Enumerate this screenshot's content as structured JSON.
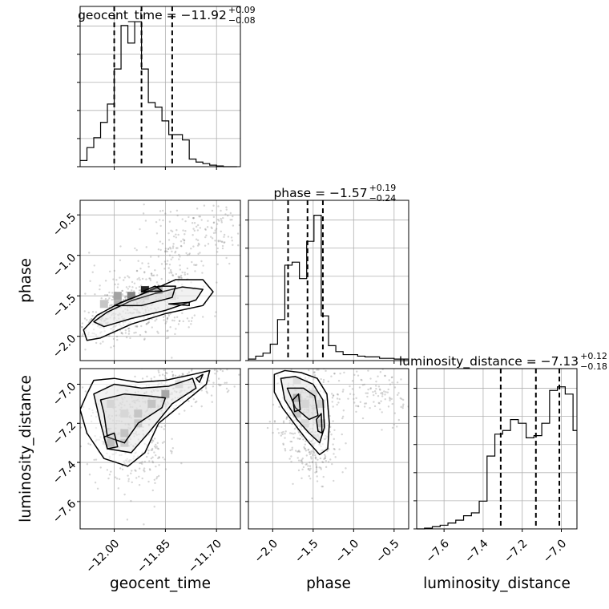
{
  "chart_data": {
    "type": "corner",
    "grid": true,
    "parameters": [
      {
        "name": "geocent_time",
        "range": [
          -12.1,
          -11.63
        ],
        "ticks": [
          -12.0,
          -11.85,
          -11.7
        ],
        "tick_labels": [
          "−12.00",
          "−11.85",
          "−11.70"
        ]
      },
      {
        "name": "phase",
        "range": [
          -2.3,
          -0.32
        ],
        "ticks": [
          -2.0,
          -1.5,
          -1.0,
          -0.5
        ],
        "tick_labels": [
          "−2.0",
          "−1.5",
          "−1.0",
          "−0.5"
        ]
      },
      {
        "name": "luminosity_distance",
        "range": [
          -7.74,
          -6.92
        ],
        "ticks": [
          -7.6,
          -7.4,
          -7.2,
          -7.0
        ],
        "tick_labels": [
          "−7.6",
          "−7.4",
          "−7.2",
          "−7.0"
        ]
      }
    ],
    "titles": [
      {
        "label": "geocent_time = −11.92",
        "plus": "+0.09",
        "minus": "−0.08"
      },
      {
        "label": "phase = −1.57",
        "plus": "+0.19",
        "minus": "−0.24"
      },
      {
        "label": "luminosity_distance = −7.13",
        "plus": "+0.12",
        "minus": "−0.18"
      }
    ],
    "quantiles": [
      [
        -12.0,
        -11.92,
        -11.83
      ],
      [
        -1.81,
        -1.57,
        -1.38
      ],
      [
        -7.31,
        -7.13,
        -7.01
      ]
    ],
    "histograms": [
      {
        "bins": [
          -12.1,
          -12.08,
          -12.06,
          -12.04,
          -12.02,
          -12.0,
          -11.98,
          -11.96,
          -11.94,
          -11.92,
          -11.9,
          -11.88,
          -11.86,
          -11.84,
          -11.82,
          -11.8,
          -11.78,
          -11.76,
          -11.74,
          -11.72,
          -11.7,
          -11.68,
          -11.66,
          -11.64
        ],
        "counts": [
          8,
          25,
          38,
          58,
          82,
          128,
          185,
          162,
          190,
          128,
          84,
          78,
          60,
          42,
          42,
          35,
          10,
          6,
          4,
          2,
          1,
          0,
          0
        ]
      },
      {
        "bins": [
          -2.3,
          -2.21,
          -2.12,
          -2.03,
          -1.94,
          -1.85,
          -1.76,
          -1.67,
          -1.58,
          -1.49,
          -1.4,
          -1.31,
          -1.22,
          -1.13,
          -1.04,
          -0.95,
          -0.86,
          -0.77,
          -0.68,
          -0.59,
          -0.5,
          -0.41,
          -0.32
        ],
        "counts": [
          2,
          6,
          10,
          22,
          55,
          128,
          132,
          110,
          160,
          195,
          60,
          20,
          12,
          8,
          8,
          6,
          5,
          5,
          3,
          3,
          2,
          2
        ]
      },
      {
        "bins": [
          -7.74,
          -7.7,
          -7.66,
          -7.62,
          -7.58,
          -7.54,
          -7.5,
          -7.46,
          -7.42,
          -7.38,
          -7.34,
          -7.3,
          -7.26,
          -7.22,
          -7.18,
          -7.14,
          -7.1,
          -7.06,
          -7.02,
          -6.98,
          -6.94,
          -6.92
        ],
        "counts": [
          0,
          1,
          3,
          5,
          8,
          12,
          18,
          22,
          38,
          100,
          130,
          135,
          150,
          145,
          125,
          128,
          145,
          190,
          195,
          185,
          135,
          135
        ]
      }
    ],
    "histogram_ymax": [
      210,
      215,
      220
    ],
    "pairs": [
      {
        "x": 0,
        "y": 1,
        "scatter": [
          {
            "cx": -11.95,
            "cy": -1.55,
            "sx": 0.06,
            "sy": 0.2,
            "n": 260
          },
          {
            "cx": -11.82,
            "cy": -1.05,
            "sx": 0.05,
            "sy": 0.3,
            "n": 150
          },
          {
            "cx": -11.7,
            "cy": -0.7,
            "sx": 0.04,
            "sy": 0.2,
            "n": 90
          },
          {
            "cx": -12.02,
            "cy": -1.85,
            "sx": 0.05,
            "sy": 0.12,
            "n": 120
          },
          {
            "cx": -11.86,
            "cy": -1.75,
            "sx": 0.06,
            "sy": 0.1,
            "n": 60
          }
        ],
        "density_cells": [
          {
            "x": -11.91,
            "y": -1.43,
            "v": 0.95
          },
          {
            "x": -11.87,
            "y": -1.43,
            "v": 0.8
          },
          {
            "x": -11.95,
            "y": -1.5,
            "v": 0.55
          },
          {
            "x": -11.99,
            "y": -1.5,
            "v": 0.4
          },
          {
            "x": -11.99,
            "y": -1.6,
            "v": 0.35
          },
          {
            "x": -11.91,
            "y": -1.5,
            "v": 0.3
          },
          {
            "x": -12.03,
            "y": -1.6,
            "v": 0.25
          },
          {
            "x": -11.83,
            "y": -1.5,
            "v": 0.2
          }
        ],
        "contours": [
          [
            [
              -12.09,
              -1.92
            ],
            [
              -12.05,
              -1.74
            ],
            [
              -11.98,
              -1.58
            ],
            [
              -11.9,
              -1.45
            ],
            [
              -11.82,
              -1.3
            ],
            [
              -11.74,
              -1.3
            ],
            [
              -11.71,
              -1.45
            ],
            [
              -11.74,
              -1.62
            ],
            [
              -11.85,
              -1.72
            ],
            [
              -11.95,
              -1.85
            ],
            [
              -12.04,
              -2.02
            ],
            [
              -12.08,
              -2.05
            ],
            [
              -12.09,
              -1.92
            ]
          ],
          [
            [
              -12.06,
              -1.82
            ],
            [
              -12.02,
              -1.7
            ],
            [
              -11.95,
              -1.56
            ],
            [
              -11.88,
              -1.47
            ],
            [
              -11.8,
              -1.39
            ],
            [
              -11.74,
              -1.42
            ],
            [
              -11.76,
              -1.55
            ],
            [
              -11.85,
              -1.68
            ],
            [
              -11.95,
              -1.78
            ],
            [
              -12.03,
              -1.88
            ],
            [
              -12.06,
              -1.82
            ]
          ],
          [
            [
              -12.0,
              -1.62
            ],
            [
              -11.93,
              -1.5
            ],
            [
              -11.87,
              -1.38
            ],
            [
              -11.82,
              -1.38
            ],
            [
              -11.83,
              -1.52
            ],
            [
              -11.92,
              -1.62
            ],
            [
              -12.0,
              -1.62
            ]
          ],
          [
            [
              -11.92,
              -1.45
            ],
            [
              -11.88,
              -1.38
            ],
            [
              -11.86,
              -1.44
            ],
            [
              -11.92,
              -1.45
            ]
          ],
          [
            [
              -11.84,
              -1.6
            ],
            [
              -11.78,
              -1.58
            ],
            [
              -11.78,
              -1.62
            ],
            [
              -11.84,
              -1.6
            ]
          ]
        ]
      },
      {
        "x": 0,
        "y": 2,
        "scatter": [
          {
            "cx": -11.98,
            "cy": -7.22,
            "sx": 0.06,
            "sy": 0.12,
            "n": 260
          },
          {
            "cx": -11.85,
            "cy": -7.05,
            "sx": 0.05,
            "sy": 0.06,
            "n": 160
          },
          {
            "cx": -11.93,
            "cy": -7.4,
            "sx": 0.05,
            "sy": 0.1,
            "n": 100
          },
          {
            "cx": -11.75,
            "cy": -6.98,
            "sx": 0.05,
            "sy": 0.05,
            "n": 80
          }
        ],
        "density_cells": [
          {
            "x": -11.85,
            "y": -7.05,
            "v": 0.95
          },
          {
            "x": -11.89,
            "y": -7.1,
            "v": 0.6
          },
          {
            "x": -11.93,
            "y": -7.15,
            "v": 0.55
          },
          {
            "x": -11.93,
            "y": -7.2,
            "v": 0.5
          },
          {
            "x": -11.97,
            "y": -7.25,
            "v": 0.6
          },
          {
            "x": -11.97,
            "y": -7.3,
            "v": 0.45
          },
          {
            "x": -12.01,
            "y": -7.1,
            "v": 0.3
          },
          {
            "x": -11.97,
            "y": -7.15,
            "v": 0.25
          },
          {
            "x": -12.01,
            "y": -7.3,
            "v": 0.7
          },
          {
            "x": -11.81,
            "y": -7.0,
            "v": 0.3
          }
        ],
        "contours": [
          [
            [
              -12.08,
              -7.05
            ],
            [
              -12.06,
              -6.98
            ],
            [
              -12.0,
              -6.97
            ],
            [
              -11.93,
              -6.99
            ],
            [
              -11.85,
              -6.98
            ],
            [
              -11.77,
              -6.95
            ],
            [
              -11.72,
              -6.93
            ],
            [
              -11.73,
              -7.0
            ],
            [
              -11.8,
              -7.1
            ],
            [
              -11.87,
              -7.2
            ],
            [
              -11.91,
              -7.35
            ],
            [
              -11.96,
              -7.42
            ],
            [
              -12.03,
              -7.38
            ],
            [
              -12.08,
              -7.25
            ],
            [
              -12.1,
              -7.13
            ],
            [
              -12.08,
              -7.05
            ]
          ],
          [
            [
              -12.06,
              -7.05
            ],
            [
              -12.0,
              -7.0
            ],
            [
              -11.92,
              -7.02
            ],
            [
              -11.84,
              -7.01
            ],
            [
              -11.77,
              -6.97
            ],
            [
              -11.76,
              -7.02
            ],
            [
              -11.83,
              -7.1
            ],
            [
              -11.9,
              -7.25
            ],
            [
              -11.95,
              -7.35
            ],
            [
              -12.02,
              -7.33
            ],
            [
              -12.04,
              -7.2
            ],
            [
              -12.06,
              -7.05
            ]
          ],
          [
            [
              -12.04,
              -7.08
            ],
            [
              -11.97,
              -7.05
            ],
            [
              -11.9,
              -7.06
            ],
            [
              -11.85,
              -7.07
            ],
            [
              -11.86,
              -7.12
            ],
            [
              -11.93,
              -7.2
            ],
            [
              -11.97,
              -7.3
            ],
            [
              -12.02,
              -7.27
            ],
            [
              -12.03,
              -7.15
            ],
            [
              -12.04,
              -7.08
            ]
          ],
          [
            [
              -12.03,
              -7.27
            ],
            [
              -12.0,
              -7.25
            ],
            [
              -11.99,
              -7.32
            ],
            [
              -12.02,
              -7.33
            ],
            [
              -12.03,
              -7.27
            ]
          ],
          [
            [
              -11.76,
              -6.97
            ],
            [
              -11.74,
              -6.95
            ],
            [
              -11.75,
              -6.99
            ],
            [
              -11.76,
              -6.97
            ]
          ]
        ]
      },
      {
        "x": 1,
        "y": 2,
        "scatter": [
          {
            "cx": -1.6,
            "cy": -7.15,
            "sx": 0.18,
            "sy": 0.12,
            "n": 320
          },
          {
            "cx": -1.45,
            "cy": -7.35,
            "sx": 0.12,
            "sy": 0.08,
            "n": 120
          },
          {
            "cx": -1.0,
            "cy": -7.0,
            "sx": 0.3,
            "sy": 0.1,
            "n": 100
          },
          {
            "cx": -0.6,
            "cy": -7.05,
            "sx": 0.15,
            "sy": 0.08,
            "n": 60
          }
        ],
        "density_cells": [
          {
            "x": -1.7,
            "y": -7.07,
            "v": 0.95
          },
          {
            "x": -1.6,
            "y": -7.1,
            "v": 0.3
          },
          {
            "x": -1.7,
            "y": -7.15,
            "v": 0.55
          },
          {
            "x": -1.5,
            "y": -7.05,
            "v": 0.35
          },
          {
            "x": -1.4,
            "y": -7.1,
            "v": 0.4
          },
          {
            "x": -1.4,
            "y": -7.2,
            "v": 0.55
          },
          {
            "x": -1.6,
            "y": -7.2,
            "v": 0.3
          },
          {
            "x": -1.7,
            "y": -6.98,
            "v": 0.25
          }
        ],
        "contours": [
          [
            [
              -1.98,
              -6.95
            ],
            [
              -1.85,
              -6.93
            ],
            [
              -1.65,
              -6.94
            ],
            [
              -1.45,
              -6.97
            ],
            [
              -1.33,
              -7.05
            ],
            [
              -1.3,
              -7.2
            ],
            [
              -1.32,
              -7.33
            ],
            [
              -1.42,
              -7.36
            ],
            [
              -1.55,
              -7.3
            ],
            [
              -1.7,
              -7.22
            ],
            [
              -1.88,
              -7.12
            ],
            [
              -1.98,
              -7.04
            ],
            [
              -1.98,
              -6.95
            ]
          ],
          [
            [
              -1.9,
              -6.97
            ],
            [
              -1.72,
              -6.96
            ],
            [
              -1.5,
              -7.0
            ],
            [
              -1.38,
              -7.08
            ],
            [
              -1.36,
              -7.22
            ],
            [
              -1.42,
              -7.3
            ],
            [
              -1.55,
              -7.25
            ],
            [
              -1.7,
              -7.18
            ],
            [
              -1.85,
              -7.08
            ],
            [
              -1.9,
              -6.97
            ]
          ],
          [
            [
              -1.82,
              -7.02
            ],
            [
              -1.62,
              -7.02
            ],
            [
              -1.48,
              -7.06
            ],
            [
              -1.44,
              -7.16
            ],
            [
              -1.55,
              -7.18
            ],
            [
              -1.72,
              -7.12
            ],
            [
              -1.82,
              -7.02
            ]
          ],
          [
            [
              -1.75,
              -7.08
            ],
            [
              -1.68,
              -7.05
            ],
            [
              -1.66,
              -7.13
            ],
            [
              -1.73,
              -7.14
            ],
            [
              -1.75,
              -7.08
            ]
          ],
          [
            [
              -1.46,
              -7.18
            ],
            [
              -1.4,
              -7.15
            ],
            [
              -1.39,
              -7.25
            ],
            [
              -1.44,
              -7.24
            ],
            [
              -1.46,
              -7.18
            ]
          ]
        ]
      }
    ]
  }
}
